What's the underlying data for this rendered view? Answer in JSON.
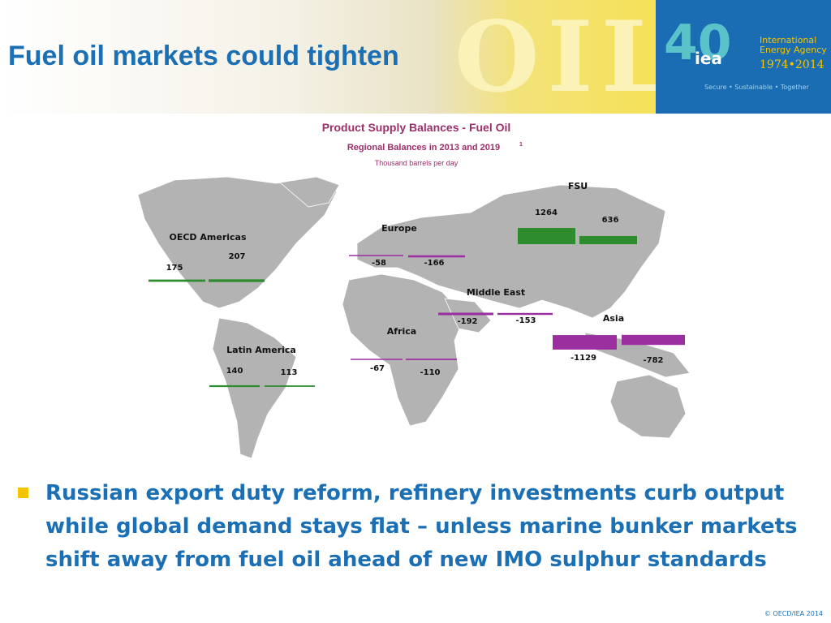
{
  "slide": {
    "title": "Fuel oil markets could tighten",
    "banner": "OIL",
    "logo": {
      "number": "40",
      "acronym": "iea",
      "name": "International Energy Agency",
      "years": "1974•2014",
      "tagline": "Secure • Sustainable • Together"
    },
    "bullet": "Russian export duty reform, refinery investments curb output while global demand stays flat – unless marine bunker markets shift away from fuel oil ahead of new IMO sulphur standards",
    "footer": "© OECD/IEA 2014"
  },
  "chart_data": {
    "type": "map-bar",
    "title": "Product Supply Balances - Fuel Oil",
    "subtitle": "Regional Balances in 2013 and 2019",
    "subtitle_note": "1",
    "unit": "Thousand barrels per day",
    "positive_color": "#2e8b2e",
    "negative_color": "#9b2fa0",
    "series": [
      {
        "name": "OECD Americas",
        "values": [
          175,
          207
        ]
      },
      {
        "name": "Latin America",
        "values": [
          140,
          113
        ]
      },
      {
        "name": "Europe",
        "values": [
          -58,
          -166
        ]
      },
      {
        "name": "Africa",
        "values": [
          -67,
          -110
        ]
      },
      {
        "name": "Middle East",
        "values": [
          -192,
          -153
        ]
      },
      {
        "name": "FSU",
        "values": [
          1264,
          636
        ]
      },
      {
        "name": "Asia",
        "values": [
          -1129,
          -782
        ]
      }
    ]
  }
}
